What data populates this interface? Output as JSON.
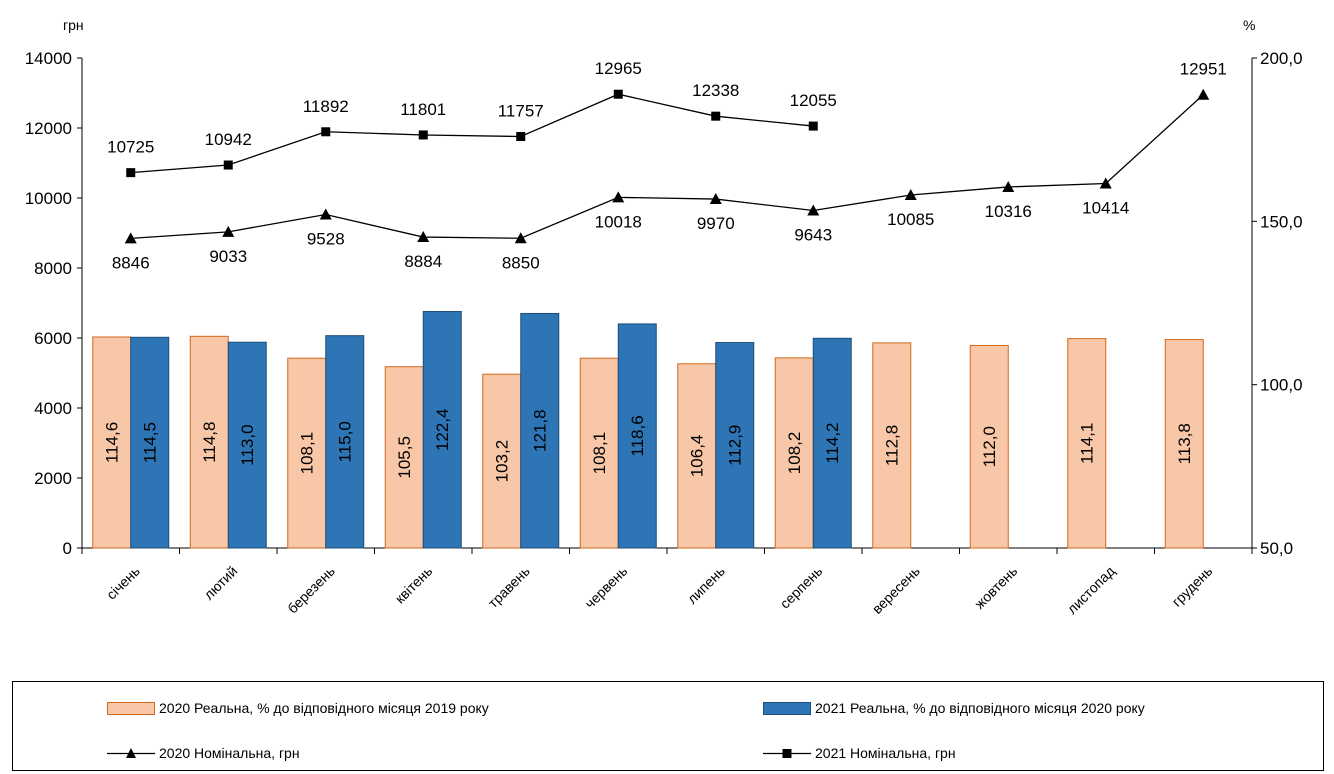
{
  "chart_data": {
    "type": "bar",
    "left_unit": "грн",
    "right_unit": "%",
    "categories": [
      "січень",
      "лютий",
      "березень",
      "квітень",
      "травень",
      "червень",
      "липень",
      "серпень",
      "вересень",
      "жовтень",
      "листопад",
      "грудень"
    ],
    "left_axis": {
      "ylim": [
        0,
        14000
      ],
      "ticks": [
        "0",
        "2000",
        "4000",
        "6000",
        "8000",
        "10000",
        "12000",
        "14000"
      ]
    },
    "right_axis": {
      "ylim": [
        50,
        200
      ],
      "ticks": [
        "50,0",
        "100,0",
        "150,0",
        "200,0"
      ]
    },
    "bar_series": [
      {
        "name": "2020 Реальна, % до відповідного  місяця 2019 року",
        "color": "#f8c7a8",
        "stroke": "#d2691e",
        "values": [
          114.6,
          114.8,
          108.1,
          105.5,
          103.2,
          108.1,
          106.4,
          108.2,
          112.8,
          112.0,
          114.1,
          113.8
        ],
        "labels": [
          "114,6",
          "114,8",
          "108,1",
          "105,5",
          "103,2",
          "108,1",
          "106,4",
          "108,2",
          "112,8",
          "112,0",
          "114,1",
          "113,8"
        ]
      },
      {
        "name": "2021 Реальна, % до відповідного  місяця 2020 року",
        "color": "#2e75b6",
        "stroke": "#1f4e79",
        "values": [
          114.5,
          113.0,
          115.0,
          122.4,
          121.8,
          118.6,
          112.9,
          114.2,
          null,
          null,
          null,
          null
        ],
        "labels": [
          "114,5",
          "113,0",
          "115,0",
          "122,4",
          "121,8",
          "118,6",
          "112,9",
          "114,2",
          "",
          "",
          "",
          ""
        ]
      }
    ],
    "line_series": [
      {
        "name": "2020 Номінальна, грн",
        "marker": "triangle",
        "values": [
          8846,
          9033,
          9528,
          8884,
          8850,
          10018,
          9970,
          9643,
          10085,
          10316,
          10414,
          12951
        ],
        "label_pos": [
          "below",
          "below",
          "below",
          "below",
          "below",
          "below",
          "below",
          "below",
          "below",
          "below",
          "below",
          "above"
        ]
      },
      {
        "name": "2021 Номінальна, грн",
        "marker": "square",
        "values": [
          10725,
          10942,
          11892,
          11801,
          11757,
          12965,
          12338,
          12055,
          null,
          null,
          null,
          null
        ],
        "label_pos": [
          "above",
          "above",
          "above",
          "above",
          "above",
          "above",
          "above",
          "above",
          "",
          "",
          "",
          ""
        ]
      }
    ]
  }
}
